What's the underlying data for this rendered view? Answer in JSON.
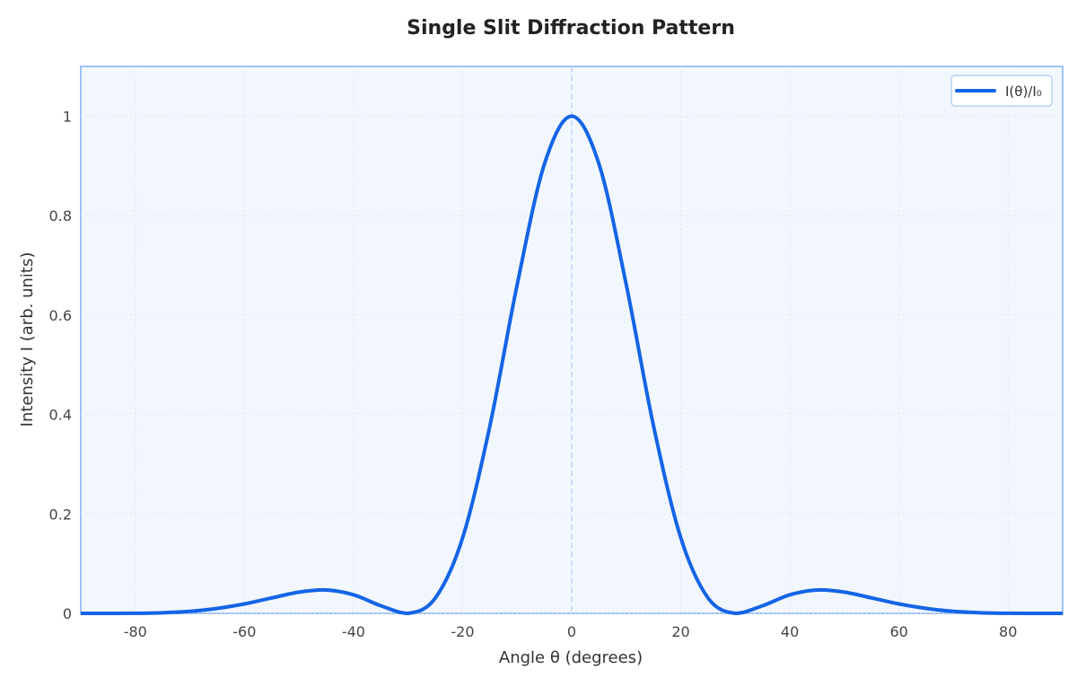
{
  "chart_data": {
    "type": "line",
    "title": "Single Slit Diffraction Pattern",
    "xlabel": "Angle θ (degrees)",
    "ylabel": "Intensity I (arb. units)",
    "xlim": [
      -90,
      90
    ],
    "ylim": [
      0,
      1.1
    ],
    "xticks": [
      -80,
      -60,
      -40,
      -20,
      0,
      20,
      40,
      60,
      80
    ],
    "xtick_labels": [
      "-80",
      "-60",
      "-40",
      "-20",
      "0",
      "20",
      "40",
      "60",
      "80"
    ],
    "yticks": [
      0,
      0.2,
      0.4,
      0.6,
      0.8,
      1
    ],
    "ytick_labels": [
      "0",
      "0.2",
      "0.4",
      "0.6",
      "0.8",
      "1"
    ],
    "grid": true,
    "legend_placement": "top-right",
    "reference_line": {
      "x": 0,
      "style": "dashed"
    },
    "colors": {
      "line": "#1464e6",
      "plot_bg": "#f2f7fe",
      "frame": "#9ec2f5",
      "grid": "#dde6f3"
    },
    "series": [
      {
        "name": "I(θ)/I₀",
        "x": [
          -90,
          -85,
          -80,
          -75,
          -70,
          -65,
          -60,
          -55,
          -50,
          -45,
          -40,
          -35,
          -30,
          -25,
          -20,
          -15,
          -10,
          -5,
          0,
          5,
          10,
          15,
          20,
          25,
          30,
          35,
          40,
          45,
          50,
          55,
          60,
          65,
          70,
          75,
          80,
          85,
          90
        ],
        "y": [
          0,
          1e-05,
          0.00024,
          0.00122,
          0.00398,
          0.01,
          0.01893,
          0.03101,
          0.04274,
          0.04707,
          0.03736,
          0.01533,
          0,
          0.0309,
          0.152,
          0.377,
          0.6611,
          0.9038,
          1,
          0.9038,
          0.6611,
          0.377,
          0.152,
          0.0309,
          0,
          0.01533,
          0.03736,
          0.04707,
          0.04274,
          0.03101,
          0.01893,
          0.01,
          0.00398,
          0.00122,
          0.00024,
          1e-05,
          0
        ]
      }
    ]
  }
}
